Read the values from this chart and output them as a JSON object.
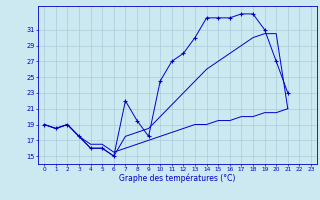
{
  "background_color": "#cce8f0",
  "grid_color": "#aaccdd",
  "line_color": "#0000cc",
  "actual_x": [
    0,
    1,
    2,
    3,
    4,
    5,
    6,
    7,
    8,
    9,
    10,
    11,
    12,
    13,
    14,
    15,
    16,
    17,
    18,
    19,
    20,
    21
  ],
  "actual_y": [
    19,
    18.5,
    19,
    17.5,
    16,
    16,
    15,
    22,
    19.5,
    17.5,
    24.5,
    27,
    28,
    30,
    32.5,
    32.5,
    32.5,
    33,
    33,
    31,
    27,
    23
  ],
  "smooth_x": [
    0,
    1,
    2,
    3,
    4,
    5,
    6,
    7,
    8,
    9,
    10,
    11,
    12,
    13,
    14,
    15,
    16,
    17,
    18,
    19,
    20,
    21
  ],
  "smooth_y": [
    19,
    18.5,
    19,
    17.5,
    16,
    16,
    15,
    17.5,
    18,
    18.5,
    20,
    21.5,
    23,
    24.5,
    26,
    27,
    28,
    29,
    30,
    30.5,
    30.5,
    21
  ],
  "min_x": [
    0,
    1,
    2,
    3,
    4,
    5,
    6,
    7,
    8,
    9,
    10,
    11,
    12,
    13,
    14,
    15,
    16,
    17,
    18,
    19,
    20,
    21
  ],
  "min_y": [
    19,
    18.5,
    19,
    17.5,
    16.5,
    16.5,
    15.5,
    16,
    16.5,
    17,
    17.5,
    18,
    18.5,
    19,
    19,
    19.5,
    19.5,
    20,
    20,
    20.5,
    20.5,
    21
  ],
  "ylim": [
    14,
    34
  ],
  "xlim": [
    -0.5,
    23.5
  ],
  "yticks": [
    15,
    17,
    19,
    21,
    23,
    25,
    27,
    29,
    31
  ],
  "xticks": [
    0,
    1,
    2,
    3,
    4,
    5,
    6,
    7,
    8,
    9,
    10,
    11,
    12,
    13,
    14,
    15,
    16,
    17,
    18,
    19,
    20,
    21,
    22,
    23
  ],
  "xlabel": "Graphe des températures (°C)",
  "figsize": [
    3.2,
    2.0
  ],
  "dpi": 100
}
